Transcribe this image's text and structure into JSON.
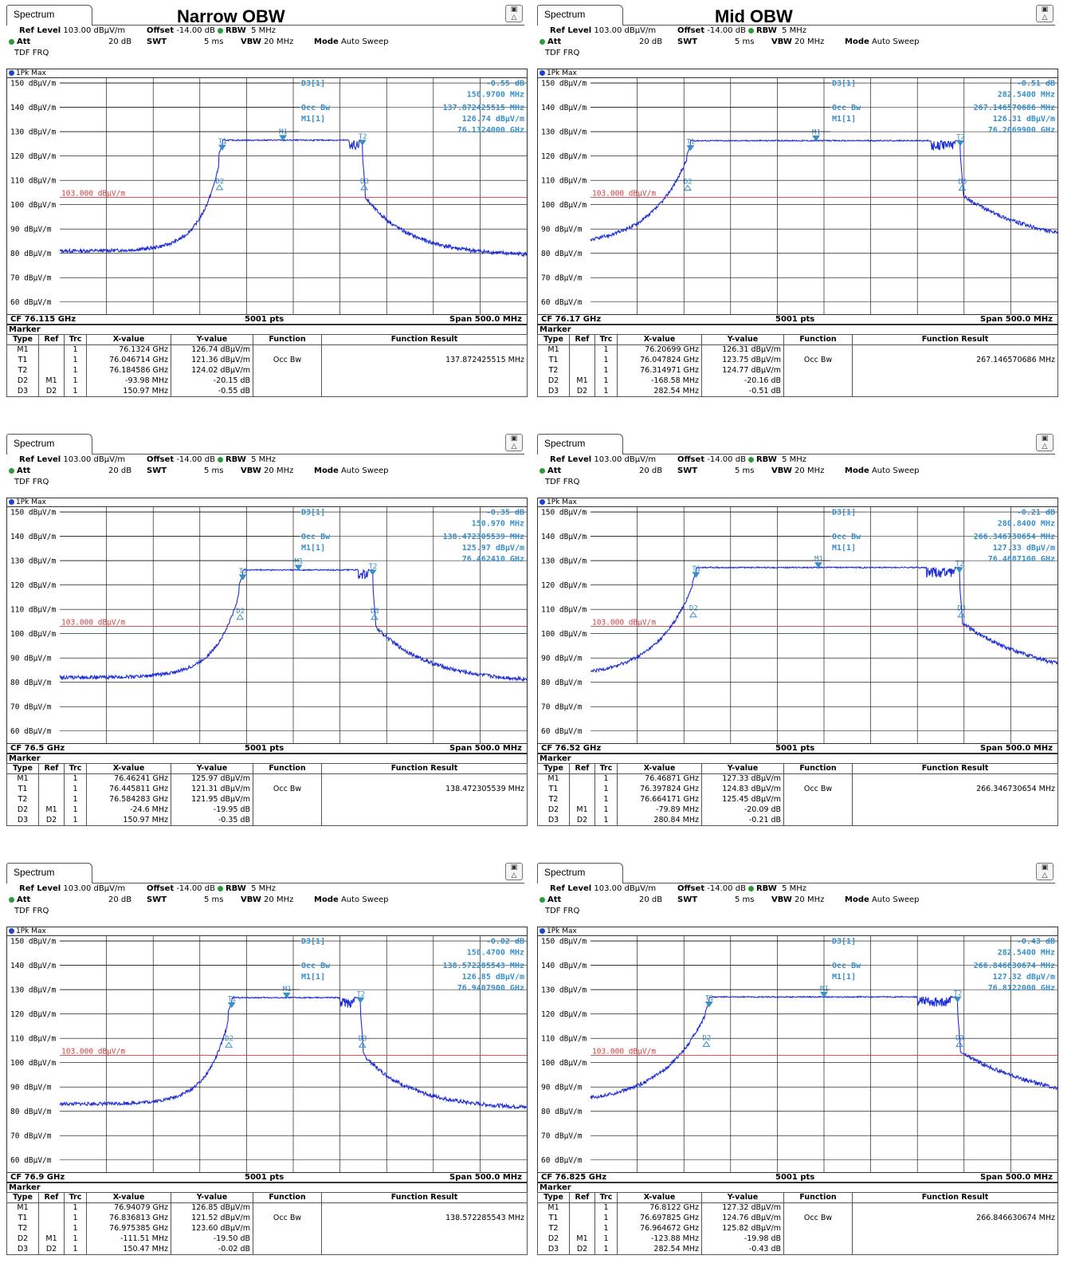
{
  "headings": {
    "left": "Narrow OBW",
    "right": "Mid OBW"
  },
  "common": {
    "tab": "Spectrum",
    "ref_level_label": "Ref Level",
    "ref_level": "103.00 dBµV/m",
    "offset_label": "Offset",
    "offset": "-14.00 dB",
    "rbw_label": "RBW",
    "rbw": "5 MHz",
    "att_label": "Att",
    "att": "20 dB",
    "swt_label": "SWT",
    "swt": "5 ms",
    "vbw_label": "VBW",
    "vbw": "20 MHz",
    "mode_label": "Mode",
    "mode": "Auto Sweep",
    "tdf": "TDF FRQ",
    "trace": "1Pk Max",
    "points": "5001 pts",
    "span": "Span 500.0 MHz",
    "marker_title": "Marker",
    "limit_label": "103.000 dBµV/m",
    "columns": [
      "Type",
      "Ref",
      "Trc",
      "X-value",
      "Y-value",
      "Function",
      "Function Result"
    ]
  },
  "panels": [
    {
      "cf": "CF 76.115 GHz",
      "readout": {
        "d3_label": "D3[1]",
        "d3_val": "-0.55 dB",
        "d3_freq": "150.9700 MHz",
        "occ_label": "Occ Bw",
        "occ_val": "137.872425515 MHz",
        "m1_label": "M1[1]",
        "m1_val": "126.74 dBµV/m",
        "m1_freq": "76.1324000 GHz"
      },
      "rows": [
        [
          "M1",
          "",
          "1",
          "76.1324 GHz",
          "126.74 dBµV/m",
          "",
          ""
        ],
        [
          "T1",
          "",
          "1",
          "76.046714 GHz",
          "121.36 dBµV/m",
          "Occ Bw",
          "137.872425515 MHz"
        ],
        [
          "T2",
          "",
          "1",
          "76.184586 GHz",
          "124.02 dBµV/m",
          "",
          ""
        ],
        [
          "D2",
          "M1",
          "1",
          "-93.98 MHz",
          "-20.15 dB",
          "",
          ""
        ],
        [
          "D3",
          "D2",
          "1",
          "150.97 MHz",
          "-0.55 dB",
          "",
          ""
        ]
      ]
    },
    {
      "cf": "CF 76.17 GHz",
      "readout": {
        "d3_label": "D3[1]",
        "d3_val": "-0.51 dB",
        "d3_freq": "282.5400 MHz",
        "occ_label": "Occ Bw",
        "occ_val": "267.146570686 MHz",
        "m1_label": "M1[1]",
        "m1_val": "126.31 dBµV/m",
        "m1_freq": "76.2069900 GHz"
      },
      "rows": [
        [
          "M1",
          "",
          "1",
          "76.20699 GHz",
          "126.31 dBµV/m",
          "",
          ""
        ],
        [
          "T1",
          "",
          "1",
          "76.047824 GHz",
          "123.75 dBµV/m",
          "Occ Bw",
          "267.146570686 MHz"
        ],
        [
          "T2",
          "",
          "1",
          "76.314971 GHz",
          "124.77 dBµV/m",
          "",
          ""
        ],
        [
          "D2",
          "M1",
          "1",
          "-168.58 MHz",
          "-20.16 dB",
          "",
          ""
        ],
        [
          "D3",
          "D2",
          "1",
          "282.54 MHz",
          "-0.51 dB",
          "",
          ""
        ]
      ]
    },
    {
      "cf": "CF 76.5 GHz",
      "readout": {
        "d3_label": "D3[1]",
        "d3_val": "-0.35 dB",
        "d3_freq": "150.970 MHz",
        "occ_label": "Occ Bw",
        "occ_val": "138.472305539 MHz",
        "m1_label": "M1[1]",
        "m1_val": "125.97 dBµV/m",
        "m1_freq": "76.462410 GHz"
      },
      "rows": [
        [
          "M1",
          "",
          "1",
          "76.46241 GHz",
          "125.97 dBµV/m",
          "",
          ""
        ],
        [
          "T1",
          "",
          "1",
          "76.445811 GHz",
          "121.31 dBµV/m",
          "Occ Bw",
          "138.472305539 MHz"
        ],
        [
          "T2",
          "",
          "1",
          "76.584283 GHz",
          "121.95 dBµV/m",
          "",
          ""
        ],
        [
          "D2",
          "M1",
          "1",
          "-24.6 MHz",
          "-19.95 dB",
          "",
          ""
        ],
        [
          "D3",
          "D2",
          "1",
          "150.97 MHz",
          "-0.35 dB",
          "",
          ""
        ]
      ]
    },
    {
      "cf": "CF 76.52 GHz",
      "readout": {
        "d3_label": "D3[1]",
        "d3_val": "-0.21 dB",
        "d3_freq": "280.8400 MHz",
        "occ_label": "Occ Bw",
        "occ_val": "266.346730654 MHz",
        "m1_label": "M1[1]",
        "m1_val": "127.33 dBµV/m",
        "m1_freq": "76.4687100 GHz"
      },
      "rows": [
        [
          "M1",
          "",
          "1",
          "76.46871 GHz",
          "127.33 dBµV/m",
          "",
          ""
        ],
        [
          "T1",
          "",
          "1",
          "76.397824 GHz",
          "124.83 dBµV/m",
          "Occ Bw",
          "266.346730654 MHz"
        ],
        [
          "T2",
          "",
          "1",
          "76.664171 GHz",
          "125.45 dBµV/m",
          "",
          ""
        ],
        [
          "D2",
          "M1",
          "1",
          "-79.89 MHz",
          "-20.09 dB",
          "",
          ""
        ],
        [
          "D3",
          "D2",
          "1",
          "280.84 MHz",
          "-0.21 dB",
          "",
          ""
        ]
      ]
    },
    {
      "cf": "CF 76.9 GHz",
      "readout": {
        "d3_label": "D3[1]",
        "d3_val": "-0.02 dB",
        "d3_freq": "150.4700 MHz",
        "occ_label": "Occ Bw",
        "occ_val": "138.572285543 MHz",
        "m1_label": "M1[1]",
        "m1_val": "126.85 dBµV/m",
        "m1_freq": "76.9407900 GHz"
      },
      "rows": [
        [
          "M1",
          "",
          "1",
          "76.94079 GHz",
          "126.85 dBµV/m",
          "",
          ""
        ],
        [
          "T1",
          "",
          "1",
          "76.836813 GHz",
          "121.52 dBµV/m",
          "Occ Bw",
          "138.572285543 MHz"
        ],
        [
          "T2",
          "",
          "1",
          "76.975385 GHz",
          "123.60 dBµV/m",
          "",
          ""
        ],
        [
          "D2",
          "M1",
          "1",
          "-111.51 MHz",
          "-19.50 dB",
          "",
          ""
        ],
        [
          "D3",
          "D2",
          "1",
          "150.47 MHz",
          "-0.02 dB",
          "",
          ""
        ]
      ]
    },
    {
      "cf": "CF 76.825 GHz",
      "readout": {
        "d3_label": "D3[1]",
        "d3_val": "-0.43 dB",
        "d3_freq": "282.5400 MHz",
        "occ_label": "Occ Bw",
        "occ_val": "266.846630674 MHz",
        "m1_label": "M1[1]",
        "m1_val": "127.32 dBµV/m",
        "m1_freq": "76.8122000 GHz"
      },
      "rows": [
        [
          "M1",
          "",
          "1",
          "76.8122 GHz",
          "127.32 dBµV/m",
          "",
          ""
        ],
        [
          "T1",
          "",
          "1",
          "76.697825 GHz",
          "124.76 dBµV/m",
          "Occ Bw",
          "266.846630674 MHz"
        ],
        [
          "T2",
          "",
          "1",
          "76.964672 GHz",
          "125.82 dBµV/m",
          "",
          ""
        ],
        [
          "D2",
          "M1",
          "1",
          "-123.88 MHz",
          "-19.98 dB",
          "",
          ""
        ],
        [
          "D3",
          "D2",
          "1",
          "282.54 MHz",
          "-0.43 dB",
          "",
          ""
        ]
      ]
    }
  ],
  "chart_data": {
    "type": "line",
    "ylabel_unit": "dBµV/m",
    "ylim": [
      55,
      152
    ],
    "yticks": [
      150,
      140,
      130,
      120,
      110,
      100,
      90,
      80,
      70,
      60
    ],
    "ytick_labels": [
      "150 dBµV/m",
      "140 dBµV/m",
      "130 dBµV/m",
      "120 dBµV/m",
      "110 dBµV/m",
      "100 dBµV/m",
      "90 dBµV/m",
      "80 dBµV/m",
      "70 dBµV/m",
      "60 dBµV/m"
    ],
    "limit_line": 103,
    "x_span_mhz": 500,
    "grid": true,
    "traces": [
      {
        "f_lo_mhz": -76,
        "f_hi_mhz": 74,
        "plateau": 126.5,
        "floor": 81,
        "skirt": 0.26,
        "notch": [
          60,
          70
        ]
      },
      {
        "f_lo_mhz": -143,
        "f_hi_mhz": 146,
        "plateau": 126.3,
        "floor": 83,
        "skirt": 0.14,
        "notch": [
          115,
          140
        ]
      },
      {
        "f_lo_mhz": -54,
        "f_hi_mhz": 85,
        "plateau": 126.2,
        "floor": 82,
        "skirt": 0.22,
        "notch": [
          70,
          80
        ]
      },
      {
        "f_lo_mhz": -137,
        "f_hi_mhz": 145,
        "plateau": 127.2,
        "floor": 82,
        "skirt": 0.14,
        "notch": [
          110,
          140
        ]
      },
      {
        "f_lo_mhz": -66,
        "f_hi_mhz": 72,
        "plateau": 126.7,
        "floor": 83,
        "skirt": 0.24,
        "notch": [
          50,
          65
        ]
      },
      {
        "f_lo_mhz": -123,
        "f_hi_mhz": 143,
        "plateau": 127.0,
        "floor": 83,
        "skirt": 0.12,
        "notch": [
          100,
          135
        ]
      }
    ]
  },
  "colors": {
    "trace": "#1f2fd6",
    "limit": "#d04040",
    "marker_text": "#3a8fc8",
    "grid": "#000000"
  }
}
